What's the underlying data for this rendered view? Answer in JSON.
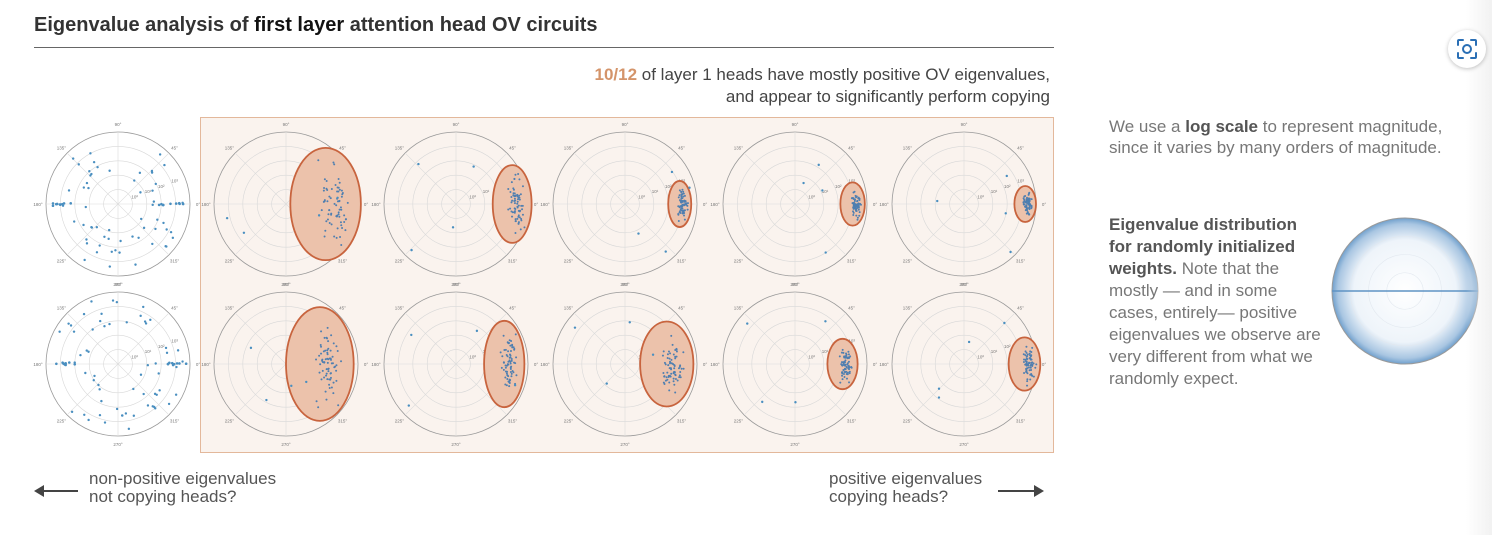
{
  "title": {
    "prefix": "Eigenvalue analysis of",
    "bold": "first layer",
    "suffix": "attention head OV circuits"
  },
  "highlight_note": {
    "fraction": "10/12",
    "line1_rest": " of layer 1 heads have mostly positive OV eigenvalues,",
    "line2": "and appear to significantly perform copying"
  },
  "angle_labels": [
    "0°",
    "45°",
    "90°",
    "135°",
    "180°",
    "225°",
    "270°",
    "315°"
  ],
  "radius_labels": [
    "10⁰",
    "10¹",
    "10²",
    "10³"
  ],
  "heads": [
    {
      "copying": false,
      "ellipse": null
    },
    {
      "copying": true,
      "ellipse": {
        "cx": 0.55,
        "rx": 0.49,
        "ry": 0.78
      }
    },
    {
      "copying": true,
      "ellipse": {
        "cx": 0.78,
        "rx": 0.27,
        "ry": 0.54
      }
    },
    {
      "copying": true,
      "ellipse": {
        "cx": 0.76,
        "rx": 0.16,
        "ry": 0.32
      }
    },
    {
      "copying": true,
      "ellipse": {
        "cx": 0.8,
        "rx": 0.17,
        "ry": 0.3
      }
    },
    {
      "copying": true,
      "ellipse": {
        "cx": 0.85,
        "rx": 0.15,
        "ry": 0.25
      }
    },
    {
      "copying": false,
      "ellipse": null
    },
    {
      "copying": true,
      "ellipse": {
        "cx": 0.47,
        "rx": 0.47,
        "ry": 0.79
      }
    },
    {
      "copying": true,
      "ellipse": {
        "cx": 0.67,
        "rx": 0.28,
        "ry": 0.6
      }
    },
    {
      "copying": true,
      "ellipse": {
        "cx": 0.58,
        "rx": 0.37,
        "ry": 0.59
      }
    },
    {
      "copying": true,
      "ellipse": {
        "cx": 0.66,
        "rx": 0.21,
        "ry": 0.35
      }
    },
    {
      "copying": true,
      "ellipse": {
        "cx": 0.84,
        "rx": 0.22,
        "ry": 0.37
      }
    }
  ],
  "arrows": {
    "left_line1": "non-positive eigenvalues",
    "left_line2": "not copying heads?",
    "right_line1": "positive eigenvalues",
    "right_line2": "copying heads?"
  },
  "side_note1": {
    "pre": "We use a",
    "bold": "log scale",
    "post": "to represent magnitude, since it varies by many orders of magnitude."
  },
  "side_note2": {
    "bold": "Eigenvalue distribution for randomly initialized weights.",
    "rest": "Note that the mostly — and in some cases, entirely— positive eigenvalues we observe are very different from what we randomly expect."
  },
  "colors": {
    "point": "#4a8fc0",
    "ellipse_fill": "#ecc2ab",
    "ellipse_stroke": "#c8643e",
    "box_bg": "#faf3ee",
    "box_border": "#e3b89b",
    "fraction": "#d4946a"
  },
  "icons": {
    "lens": "lens-icon"
  }
}
